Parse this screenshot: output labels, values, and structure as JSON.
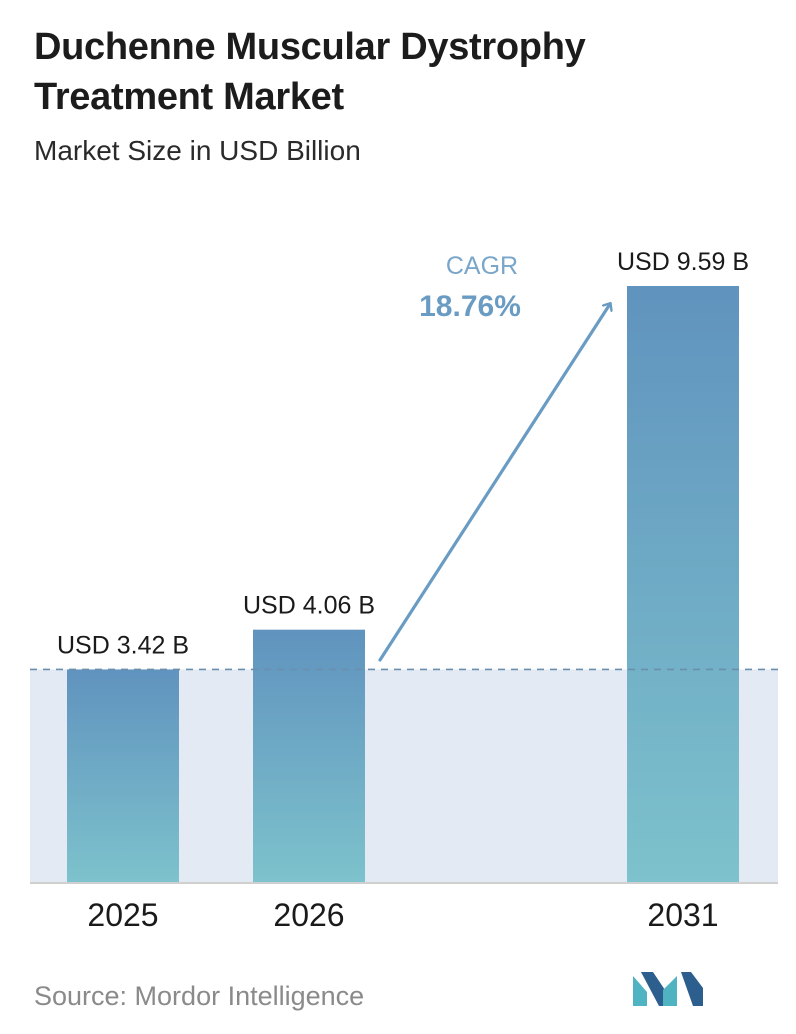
{
  "header": {
    "title": "Duchenne Muscular Dystrophy Treatment Market",
    "subtitle": "Market Size in USD Billion"
  },
  "footer": {
    "source": "Source:  Mordor Intelligence"
  },
  "cagr": {
    "label": "CAGR",
    "value": "18.76%"
  },
  "colors": {
    "bar_top": "#6093be",
    "bar_bottom": "#7dc2cc",
    "band": "#e3eaf3",
    "accent": "#6a9cc3",
    "dashed_line": "#6a8fae",
    "logo_dark": "#2c5f8d",
    "logo_teal": "#4fb3c2"
  },
  "chart_data": {
    "type": "bar",
    "title": "Duchenne Muscular Dystrophy Treatment Market",
    "subtitle": "Market Size in USD Billion",
    "categories": [
      "2025",
      "2026",
      "2031"
    ],
    "values": [
      3.42,
      4.06,
      9.59
    ],
    "data_labels": [
      "USD 3.42 B",
      "USD 4.06 B",
      "USD 9.59 B"
    ],
    "xlabel": "",
    "ylabel": "",
    "ylim": [
      0,
      9.59
    ],
    "grid": false,
    "legend": "none",
    "annotations": [
      "CAGR",
      "18.76%"
    ]
  }
}
